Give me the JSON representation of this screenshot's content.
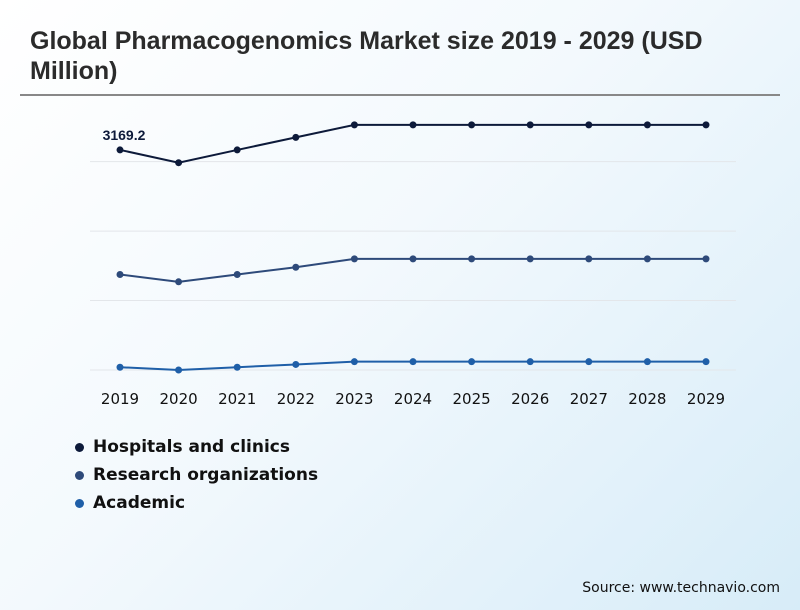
{
  "title": "Global Pharmacogenomics Market size 2019 - 2029 (USD Million)",
  "source": "Source: www.technavio.com",
  "chart_data": {
    "type": "line",
    "title": "Global Pharmacogenomics Market size 2019 - 2029 (USD Million)",
    "categories": [
      "2019",
      "2020",
      "2021",
      "2022",
      "2023",
      "2024",
      "2025",
      "2026",
      "2027",
      "2028",
      "2029"
    ],
    "series": [
      {
        "name": "Hospitals and clinics",
        "color": "#0d1a3a",
        "values": [
          3169.2,
          2985,
          3169.2,
          3350,
          3530,
          3530,
          3530,
          3530,
          3530,
          3530,
          3530
        ]
      },
      {
        "name": "Research organizations",
        "color": "#2e4a7a",
        "values": [
          1375,
          1270,
          1375,
          1480,
          1600,
          1600,
          1600,
          1600,
          1600,
          1600,
          1600
        ]
      },
      {
        "name": "Academic",
        "color": "#1f5fa8",
        "values": [
          40,
          0,
          40,
          80,
          120,
          120,
          120,
          120,
          120,
          120,
          120
        ]
      }
    ],
    "data_labels": [
      {
        "series": 0,
        "index": 0,
        "text": "3169.2"
      }
    ],
    "ylim": [
      0,
      3600
    ],
    "yticks": [
      0,
      1000,
      2000,
      3000
    ],
    "y_axis_labels_shown": false,
    "grid": true,
    "legend_position": "bottom-left"
  }
}
